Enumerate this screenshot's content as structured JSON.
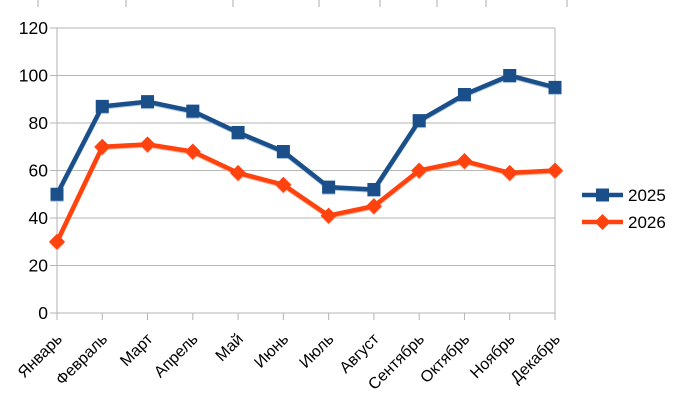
{
  "chart_data": {
    "type": "line",
    "categories": [
      "Январь",
      "Февраль",
      "Март",
      "Апрель",
      "Май",
      "Июнь",
      "Июль",
      "Август",
      "Сентябрь",
      "Октябрь",
      "Ноябрь",
      "Декабрь"
    ],
    "series": [
      {
        "name": "2025",
        "marker": "square",
        "color": "#1b4f8a",
        "halo": "#a8c4e0",
        "values": [
          50,
          87,
          89,
          85,
          76,
          68,
          53,
          52,
          81,
          92,
          100,
          95
        ]
      },
      {
        "name": "2026",
        "marker": "diamond",
        "color": "#ff420e",
        "halo": "#ffb49b",
        "values": [
          30,
          70,
          71,
          68,
          59,
          54,
          41,
          45,
          60,
          64,
          59,
          60
        ]
      }
    ],
    "title": "",
    "xlabel": "",
    "ylabel": "",
    "ylim": [
      0,
      120
    ],
    "ytick_step": 20,
    "ytick_labels": [
      "0",
      "20",
      "40",
      "60",
      "80",
      "100",
      "120"
    ],
    "grid": true,
    "legend_position": "right",
    "legend_entries": [
      "2025",
      "2026"
    ]
  },
  "style": {
    "grid_color": "#b6b6b6",
    "axis_color": "#b3b3b3",
    "backdrop_tick_color": "#aeaeae",
    "text_color": "#000000",
    "background": "#ffffff"
  }
}
